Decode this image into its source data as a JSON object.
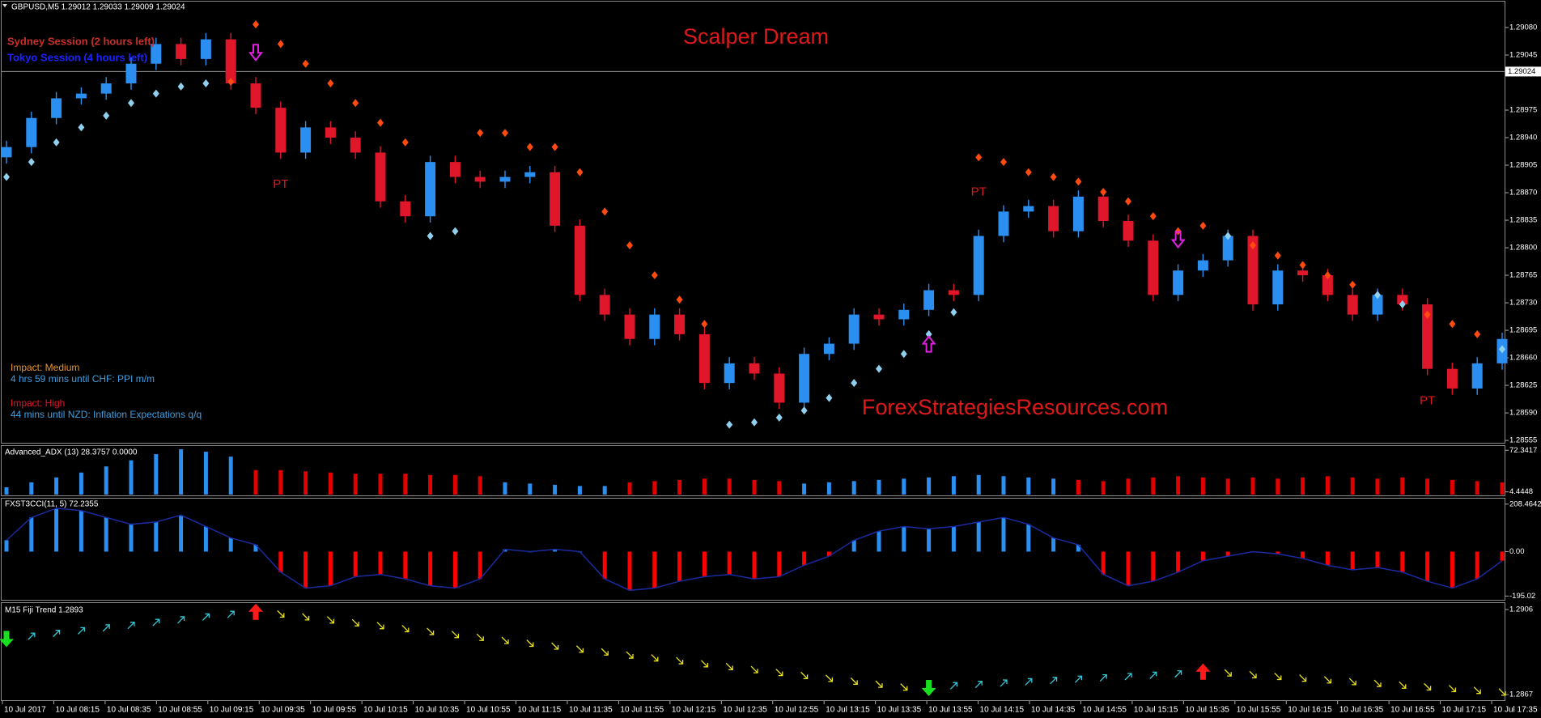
{
  "chart_data": [
    {
      "type": "candlestick",
      "title": "Scalper Dream",
      "header": "GBPUSD,M5  1.29012 1.29033 1.29009 1.29024",
      "watermark": "ForexStrategiesResources.com",
      "time_labels": [
        "10 Jul 2017",
        "10 Jul 08:15",
        "10 Jul 08:35",
        "10 Jul 08:55",
        "10 Jul 09:15",
        "10 Jul 09:35",
        "10 Jul 09:55",
        "10 Jul 10:15",
        "10 Jul 10:35",
        "10 Jul 10:55",
        "10 Jul 11:15",
        "10 Jul 11:35",
        "10 Jul 11:55",
        "10 Jul 12:15",
        "10 Jul 12:35",
        "10 Jul 12:55",
        "10 Jul 13:15",
        "10 Jul 13:35",
        "10 Jul 13:55",
        "10 Jul 14:15",
        "10 Jul 14:35",
        "10 Jul 14:55",
        "10 Jul 15:15",
        "10 Jul 15:35",
        "10 Jul 15:55",
        "10 Jul 16:15",
        "10 Jul 16:35",
        "10 Jul 16:55",
        "10 Jul 17:15",
        "10 Jul 17:35"
      ],
      "open": [
        1.28915,
        1.28928,
        1.28965,
        1.2899,
        1.28996,
        1.29009,
        1.29034,
        1.29059,
        1.2904,
        1.29065,
        1.29009,
        1.28978,
        1.28921,
        1.28953,
        1.2894,
        1.28921,
        1.28859,
        1.2884,
        1.28909,
        1.2889,
        1.28884,
        1.2889,
        1.28896,
        1.28828,
        1.2874,
        1.28715,
        1.28684,
        1.28715,
        1.2869,
        1.28628,
        1.28653,
        1.2864,
        1.28603,
        1.28665,
        1.28678,
        1.28715,
        1.28709,
        1.28721,
        1.28746,
        1.2874,
        1.28815,
        1.28846,
        1.28853,
        1.28821,
        1.28865,
        1.28834,
        1.28809,
        1.2874,
        1.28771,
        1.28784,
        1.28815,
        1.28728,
        1.28771,
        1.28765,
        1.2874,
        1.28715,
        1.2874,
        1.28728,
        1.28646,
        1.28621,
        1.28653
      ],
      "high": [
        1.28936,
        1.28973,
        1.28998,
        1.29004,
        1.29017,
        1.29042,
        1.29067,
        1.29067,
        1.29073,
        1.29073,
        1.29017,
        1.28986,
        1.28961,
        1.28961,
        1.28948,
        1.28929,
        1.28867,
        1.28917,
        1.28917,
        1.28898,
        1.28898,
        1.28904,
        1.28904,
        1.28836,
        1.28748,
        1.28723,
        1.28723,
        1.28723,
        1.28698,
        1.28661,
        1.28661,
        1.28648,
        1.28673,
        1.28686,
        1.28723,
        1.28723,
        1.28729,
        1.28754,
        1.28754,
        1.28823,
        1.28854,
        1.28861,
        1.28861,
        1.28873,
        1.28873,
        1.28842,
        1.28817,
        1.28779,
        1.28792,
        1.28823,
        1.28823,
        1.28779,
        1.28779,
        1.28773,
        1.28748,
        1.28748,
        1.28748,
        1.28736,
        1.28654,
        1.28661,
        1.28692
      ],
      "low": [
        1.28907,
        1.2892,
        1.28957,
        1.28982,
        1.28988,
        1.29001,
        1.29026,
        1.29032,
        1.29032,
        1.29001,
        1.2897,
        1.28913,
        1.28913,
        1.28932,
        1.28913,
        1.28851,
        1.28832,
        1.28832,
        1.28882,
        1.28876,
        1.28876,
        1.28882,
        1.2882,
        1.28732,
        1.28707,
        1.28676,
        1.28676,
        1.28682,
        1.2862,
        1.2862,
        1.28632,
        1.28595,
        1.28595,
        1.28657,
        1.2867,
        1.28701,
        1.28701,
        1.28713,
        1.28732,
        1.28732,
        1.28807,
        1.28838,
        1.28813,
        1.28813,
        1.28826,
        1.28801,
        1.28732,
        1.28732,
        1.28763,
        1.28776,
        1.2872,
        1.2872,
        1.28757,
        1.28732,
        1.28707,
        1.28707,
        1.2872,
        1.28638,
        1.28613,
        1.28613,
        1.28645
      ],
      "close": [
        1.28928,
        1.28965,
        1.2899,
        1.28996,
        1.29009,
        1.29034,
        1.29059,
        1.2904,
        1.29065,
        1.29009,
        1.28978,
        1.28921,
        1.28953,
        1.2894,
        1.28921,
        1.28859,
        1.2884,
        1.28909,
        1.2889,
        1.28884,
        1.2889,
        1.28896,
        1.28828,
        1.2874,
        1.28715,
        1.28684,
        1.28715,
        1.2869,
        1.28628,
        1.28653,
        1.2864,
        1.28603,
        1.28665,
        1.28678,
        1.28715,
        1.28709,
        1.28721,
        1.28746,
        1.2874,
        1.28815,
        1.28846,
        1.28853,
        1.28821,
        1.28865,
        1.28834,
        1.28809,
        1.2874,
        1.28771,
        1.28784,
        1.28815,
        1.28728,
        1.28771,
        1.28765,
        1.2874,
        1.28715,
        1.2874,
        1.28728,
        1.28646,
        1.28621,
        1.28653,
        1.28684
      ],
      "sar": [
        1.2889,
        1.28909,
        1.28934,
        1.28953,
        1.28968,
        1.28984,
        1.28996,
        1.29005,
        1.29009,
        1.29011,
        1.29084,
        1.29059,
        1.29034,
        1.29009,
        1.28984,
        1.28959,
        1.28934,
        1.28815,
        1.28821,
        1.28946,
        1.28946,
        1.28928,
        1.28928,
        1.28896,
        1.28846,
        1.28803,
        1.28765,
        1.28734,
        1.28703,
        1.28575,
        1.28578,
        1.28584,
        1.28593,
        1.28609,
        1.28628,
        1.28646,
        1.28665,
        1.2869,
        1.28718,
        1.28915,
        1.28909,
        1.28896,
        1.2889,
        1.28884,
        1.28871,
        1.28859,
        1.2884,
        1.28821,
        1.28828,
        1.28815,
        1.28803,
        1.2879,
        1.28778,
        1.28765,
        1.28753,
        1.2874,
        1.28728,
        1.28715,
        1.28703,
        1.2869,
        1.28671
      ],
      "up_color": "#2a8ff0",
      "down_color": "#e0162b",
      "sar_up_color": "#8fd0ee",
      "sar_down_color": "#ff4a10",
      "ylim": [
        1.28552,
        1.29115
      ],
      "yticks": [
        {
          "value": 1.2908,
          "label": "1.29080"
        },
        {
          "value": 1.29045,
          "label": "1.29045"
        },
        {
          "value": 1.28975,
          "label": "1.28975"
        },
        {
          "value": 1.2894,
          "label": "1.28940"
        },
        {
          "value": 1.28905,
          "label": "1.28905"
        },
        {
          "value": 1.2887,
          "label": "1.28870"
        },
        {
          "value": 1.28835,
          "label": "1.28835"
        },
        {
          "value": 1.288,
          "label": "1.28800"
        },
        {
          "value": 1.28765,
          "label": "1.28765"
        },
        {
          "value": 1.2873,
          "label": "1.28730"
        },
        {
          "value": 1.28695,
          "label": "1.28695"
        },
        {
          "value": 1.2866,
          "label": "1.28660"
        },
        {
          "value": 1.28625,
          "label": "1.28625"
        },
        {
          "value": 1.2859,
          "label": "1.28590"
        },
        {
          "value": 1.28555,
          "label": "1.28555"
        }
      ],
      "current_price": {
        "value": 1.29024,
        "label": "1.29024"
      },
      "annotations": [
        "PT",
        "PT",
        "PT"
      ],
      "sessions": [
        {
          "text": "Sydney Session (2 hours left)",
          "color": "#c8302a"
        },
        {
          "text": "Tokyo Session (4 hours left)",
          "color": "#1a22ff"
        }
      ],
      "news": [
        {
          "impact": "Impact: Medium",
          "impact_color": "#e8962a",
          "text": "4 hrs 59 mins until CHF: PPI m/m",
          "color": "#3fa0e0"
        },
        {
          "impact": "Impact: High",
          "impact_color": "#e0162b",
          "text": "44 mins until NZD: Inflation Expectations q/q",
          "color": "#3fa0e0"
        }
      ]
    },
    {
      "type": "bar",
      "title": "Advanced_ADX (13) 28.3757 0.0000",
      "values": [
        12,
        20,
        28,
        36,
        46,
        56,
        66,
        74,
        70,
        62,
        40,
        40,
        38,
        36,
        34,
        34,
        34,
        32,
        32,
        30,
        20,
        18,
        16,
        14,
        14,
        20,
        22,
        24,
        26,
        26,
        24,
        22,
        18,
        20,
        22,
        24,
        26,
        28,
        30,
        32,
        30,
        28,
        26,
        24,
        22,
        26,
        28,
        30,
        28,
        26,
        28,
        26,
        28,
        30,
        28,
        26,
        28,
        26,
        24,
        22,
        20
      ],
      "colors": [
        "#2a8ff0",
        "#2a8ff0",
        "#2a8ff0",
        "#2a8ff0",
        "#2a8ff0",
        "#2a8ff0",
        "#2a8ff0",
        "#2a8ff0",
        "#2a8ff0",
        "#2a8ff0",
        "#e00000",
        "#e00000",
        "#e00000",
        "#e00000",
        "#e00000",
        "#e00000",
        "#e00000",
        "#e00000",
        "#e00000",
        "#e00000",
        "#2a8ff0",
        "#2a8ff0",
        "#2a8ff0",
        "#2a8ff0",
        "#2a8ff0",
        "#e00000",
        "#e00000",
        "#e00000",
        "#e00000",
        "#e00000",
        "#e00000",
        "#e00000",
        "#2a8ff0",
        "#2a8ff0",
        "#2a8ff0",
        "#2a8ff0",
        "#2a8ff0",
        "#2a8ff0",
        "#2a8ff0",
        "#2a8ff0",
        "#2a8ff0",
        "#2a8ff0",
        "#2a8ff0",
        "#e00000",
        "#e00000",
        "#e00000",
        "#e00000",
        "#e00000",
        "#e00000",
        "#e00000",
        "#e00000",
        "#e00000",
        "#e00000",
        "#e00000",
        "#e00000",
        "#e00000",
        "#e00000",
        "#e00000",
        "#e00000",
        "#e00000",
        "#e00000"
      ],
      "ylim": [
        0,
        78
      ],
      "yticks": [
        72.3417,
        4.4448
      ]
    },
    {
      "type": "bar",
      "title": "FXST3CCI(11, 5) 72.2355",
      "values": [
        50,
        150,
        190,
        180,
        150,
        120,
        130,
        160,
        110,
        60,
        30,
        -90,
        -160,
        -150,
        -110,
        -100,
        -120,
        -150,
        -160,
        -120,
        10,
        0,
        10,
        0,
        -120,
        -170,
        -160,
        -130,
        -110,
        -100,
        -120,
        -110,
        -60,
        -20,
        50,
        90,
        110,
        100,
        110,
        130,
        150,
        120,
        60,
        30,
        -100,
        -150,
        -130,
        -90,
        -40,
        -20,
        0,
        -10,
        -30,
        -60,
        -80,
        -70,
        -90,
        -130,
        -160,
        -120,
        -40
      ],
      "positive_color": "#2a8ff0",
      "negative_color": "#ff0000",
      "line_color": "#1a2aa0",
      "ylim": [
        -208,
        229
      ],
      "yticks": [
        208.4642,
        {
          "value": 0,
          "label": "0.00"
        },
        -195.02
      ]
    },
    {
      "type": "trend",
      "title": "M15 Fiji Trend 1.2893",
      "values": [
        1.28925,
        1.28937,
        1.2895,
        1.28962,
        1.28975,
        1.28987,
        1.29,
        1.29012,
        1.29025,
        1.29037,
        1.2905,
        1.2904,
        1.29027,
        1.29013,
        1.29,
        1.28987,
        1.28973,
        1.2896,
        1.28946,
        1.28933,
        1.28919,
        1.28906,
        1.28893,
        1.28879,
        1.28866,
        1.28852,
        1.28839,
        1.28826,
        1.28812,
        1.28799,
        1.28785,
        1.28772,
        1.28758,
        1.28745,
        1.28732,
        1.28718,
        1.28705,
        1.287,
        1.2871,
        1.28716,
        1.28722,
        1.28728,
        1.28734,
        1.2874,
        1.28746,
        1.28752,
        1.28758,
        1.28764,
        1.28775,
        1.2877,
        1.28762,
        1.28754,
        1.28746,
        1.28738,
        1.2873,
        1.28722,
        1.28714,
        1.28706,
        1.28698,
        1.2869,
        1.28682
      ],
      "up_color": "#35c8d8",
      "down_color": "#e8e020",
      "signal_up_color": "#18e020",
      "signal_down_color": "#ff1a1a",
      "ylim": [
        1.28648,
        1.29086
      ],
      "yticks": [
        1.2906,
        1.2867
      ]
    }
  ]
}
